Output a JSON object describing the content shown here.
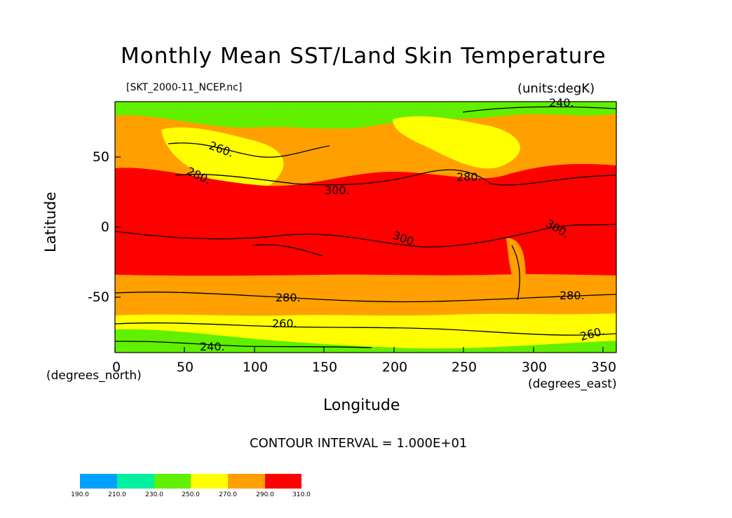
{
  "title": "Monthly Mean SST/Land Skin Temperature",
  "file_label": "[SKT_2000-11_NCEP.nc]",
  "units_label": "(units:degK)",
  "y_axis_title": "Latitude",
  "x_axis_title": "Longitude",
  "y_unit_note": "(degrees_north)",
  "x_unit_note": "(degrees_east)",
  "contour_interval_text": "CONTOUR INTERVAL = 1.000E+01",
  "x_ticks": [
    "0",
    "50",
    "100",
    "150",
    "200",
    "250",
    "300",
    "350"
  ],
  "y_ticks": [
    "50",
    "0",
    "-50"
  ],
  "contour_labels": [
    "240.",
    "260.",
    "280.",
    "280.",
    "300.",
    "300.",
    "300.",
    "280.",
    "280.",
    "260.",
    "260.",
    "240."
  ],
  "colorbar": {
    "labels": [
      "190.0",
      "210.0",
      "230.0",
      "250.0",
      "270.0",
      "290.0",
      "310.0"
    ],
    "colors": [
      "#00a0ff",
      "#00f0a0",
      "#60f000",
      "#ffff00",
      "#ffa000",
      "#ff0000"
    ]
  },
  "colors": {
    "cold": "#60f000",
    "cool": "#ffff00",
    "mild": "#ffa000",
    "warm": "#ff0000"
  }
}
